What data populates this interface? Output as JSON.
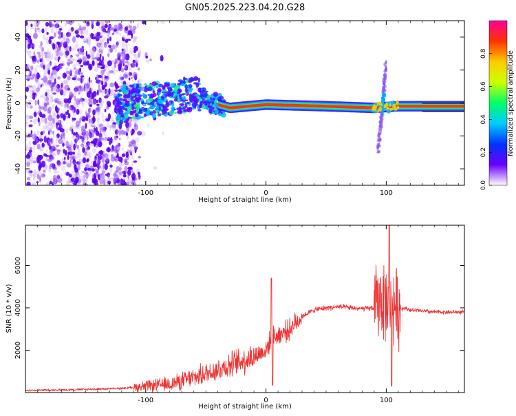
{
  "title": "GN05.2025.223.04.20.G28",
  "chart_data": [
    {
      "type": "heatmap",
      "xlabel": "Height of straight line (km)",
      "ylabel": "Frequency (Hz)",
      "xlim": [
        -200,
        165
      ],
      "ylim": [
        -50,
        50
      ],
      "x_ticks": [
        -100,
        0,
        100
      ],
      "y_ticks": [
        -40,
        -20,
        0,
        20,
        40
      ],
      "colorbar": {
        "label": "Normalized spectral amplitude",
        "range": [
          0,
          1
        ],
        "ticks": [
          "0.0",
          "0.2",
          "0.4",
          "0.6",
          "0.8"
        ],
        "tick_values": [
          0,
          0.2,
          0.4,
          0.6,
          0.8
        ],
        "colormap": [
          "#ffffff",
          "#6a00ff",
          "#0033ff",
          "#00ccff",
          "#00ff66",
          "#ccff00",
          "#ffcc00",
          "#ff3300",
          "#ff0099"
        ]
      },
      "features": [
        {
          "label": "noise_region",
          "x_range": [
            -200,
            -110
          ],
          "freq_range": [
            -50,
            50
          ]
        },
        {
          "label": "carrier_band",
          "x_range": [
            -120,
            165
          ],
          "freq_center": [
            [
              -120,
              0
            ],
            [
              -80,
              3
            ],
            [
              -60,
              6
            ],
            [
              -45,
              0
            ],
            [
              -30,
              -3
            ],
            [
              0,
              -1
            ],
            [
              50,
              -2
            ],
            [
              90,
              -3
            ],
            [
              110,
              -2
            ],
            [
              165,
              -2
            ]
          ]
        },
        {
          "label": "spike",
          "x": 97,
          "freq_range": [
            -30,
            25
          ]
        }
      ]
    },
    {
      "type": "line",
      "xlabel": "Height of straight line (km)",
      "ylabel": "SNR (10 * v/v)",
      "xlim": [
        -200,
        165
      ],
      "ylim": [
        0,
        7900
      ],
      "x_ticks": [
        -100,
        0,
        100
      ],
      "y_ticks": [
        2000,
        4000,
        6000
      ],
      "color": "#ee3333",
      "series": [
        {
          "x": [
            -200,
            -150,
            -120,
            -100,
            -80,
            -60,
            -40,
            -20,
            -10,
            0,
            5,
            10,
            20,
            30,
            40,
            50,
            60,
            70,
            80,
            90,
            95,
            100,
            105,
            110,
            115,
            120,
            140,
            165
          ],
          "values": [
            100,
            150,
            200,
            300,
            400,
            700,
            1100,
            1500,
            1700,
            2000,
            2600,
            2700,
            3000,
            3600,
            3900,
            4000,
            4050,
            4000,
            3950,
            4000,
            4500,
            4200,
            4300,
            3900,
            4000,
            3900,
            3800,
            3800
          ]
        }
      ]
    }
  ]
}
